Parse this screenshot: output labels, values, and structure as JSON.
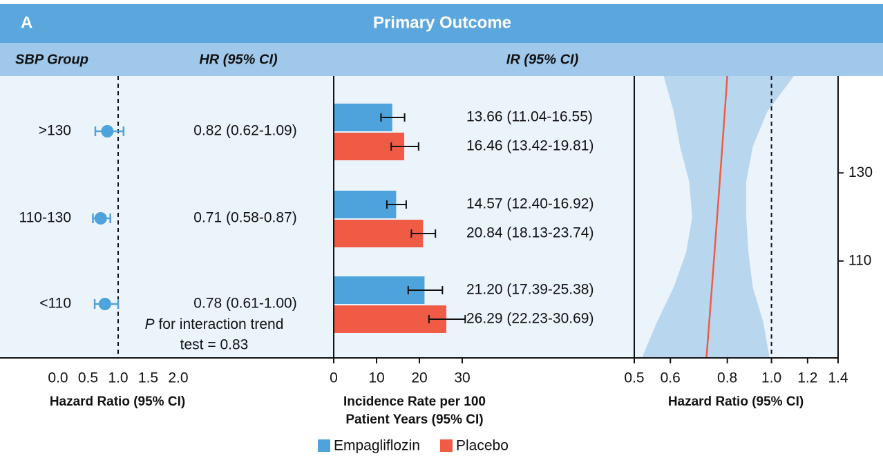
{
  "header": {
    "panel": "A",
    "title": "Primary Outcome",
    "columns": [
      "SBP Group",
      "HR (95% CI)",
      "IR (95% CI)"
    ]
  },
  "chart_data": [
    {
      "type": "forest",
      "categories": [
        ">130",
        "110-130",
        "<110"
      ],
      "values": [
        0.82,
        0.71,
        0.78
      ],
      "lower": [
        0.62,
        0.58,
        0.61
      ],
      "upper": [
        1.09,
        0.87,
        1.0
      ],
      "value_labels": [
        "0.82 (0.62-1.09)",
        "0.71 (0.58-0.87)",
        "0.78 (0.61-1.00)"
      ],
      "color": "#4ea3dc",
      "xlim": [
        0,
        2
      ],
      "xticks": [
        {
          "value": 0,
          "label": "0.0"
        },
        0.5,
        {
          "value": 1,
          "label": "1.0"
        },
        1.5,
        {
          "value": 2,
          "label": "2.0"
        }
      ],
      "xlabel": "Hazard Ratio (95% CI)",
      "refline": 1,
      "annotation": {
        "italic": "P",
        "line1": " for interaction trend",
        "line2": "test = 0.83"
      }
    },
    {
      "type": "hbar",
      "series": [
        {
          "name": "Empagliflozin",
          "color": "#4ea3dc",
          "values": [
            13.66,
            14.57,
            21.2
          ],
          "lower": [
            11.04,
            12.4,
            17.39
          ],
          "upper": [
            16.55,
            16.92,
            25.38
          ],
          "value_labels": [
            "13.66 (11.04-16.55)",
            "14.57 (12.40-16.92)",
            "21.20 (17.39-25.38)"
          ]
        },
        {
          "name": "Placebo",
          "color": "#ef5b45",
          "values": [
            16.46,
            20.84,
            26.29
          ],
          "lower": [
            13.42,
            18.13,
            22.23
          ],
          "upper": [
            19.81,
            23.74,
            30.69
          ],
          "value_labels": [
            "16.46 (13.42-19.81)",
            "20.84 (18.13-23.74)",
            "26.29 (22.23-30.69)"
          ]
        }
      ],
      "xlim": [
        0,
        30
      ],
      "xticks": [
        0,
        10,
        20,
        30
      ],
      "xlabel": [
        "Incidence Rate per 100",
        "Patient Years (95% CI)"
      ]
    },
    {
      "type": "spline",
      "y": [
        88,
        96,
        104,
        112,
        120,
        128,
        136,
        144,
        152
      ],
      "values": [
        0.72,
        0.73,
        0.74,
        0.75,
        0.76,
        0.77,
        0.78,
        0.79,
        0.8
      ],
      "lower": [
        0.52,
        0.56,
        0.61,
        0.65,
        0.67,
        0.66,
        0.63,
        0.61,
        0.58
      ],
      "upper": [
        0.99,
        0.96,
        0.91,
        0.89,
        0.88,
        0.88,
        0.91,
        0.98,
        1.12
      ],
      "color": "#ef5b45",
      "band_color": "#b9d6ef",
      "xlim": [
        0.5,
        1.4
      ],
      "log_x": true,
      "xticks": [
        0.5,
        0.6,
        0.8,
        {
          "value": 1,
          "label": "1.0"
        },
        1.2,
        1.4
      ],
      "ylim": [
        88,
        152
      ],
      "yticks": [
        110,
        130
      ],
      "xlabel": "Hazard Ratio (95% CI)",
      "refline": 1
    }
  ]
}
